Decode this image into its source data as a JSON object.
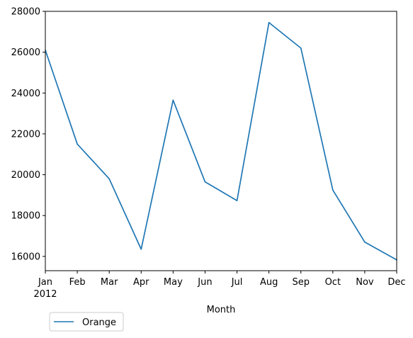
{
  "chart_data": {
    "type": "line",
    "x": [
      "Jan",
      "Feb",
      "Mar",
      "Apr",
      "May",
      "Jun",
      "Jul",
      "Aug",
      "Sep",
      "Oct",
      "Nov",
      "Dec"
    ],
    "x_year_label": "2012",
    "series": [
      {
        "name": "Orange",
        "color": "#1f77b4",
        "values": [
          26100,
          21500,
          19800,
          16350,
          23650,
          19650,
          18730,
          27450,
          26200,
          19250,
          16700,
          15830
        ]
      }
    ],
    "title": "",
    "xlabel": "Month",
    "ylabel": "",
    "ylim": [
      15300,
      28000
    ],
    "yticks": [
      16000,
      18000,
      20000,
      22000,
      24000,
      26000,
      28000
    ],
    "grid": false,
    "legend_position": "below-left"
  }
}
